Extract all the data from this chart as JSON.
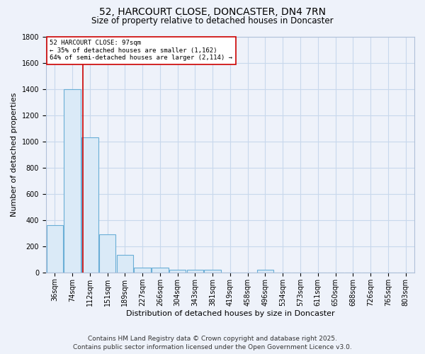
{
  "title": "52, HARCOURT CLOSE, DONCASTER, DN4 7RN",
  "subtitle": "Size of property relative to detached houses in Doncaster",
  "xlabel": "Distribution of detached houses by size in Doncaster",
  "ylabel": "Number of detached properties",
  "bar_labels": [
    "36sqm",
    "74sqm",
    "112sqm",
    "151sqm",
    "189sqm",
    "227sqm",
    "266sqm",
    "304sqm",
    "343sqm",
    "381sqm",
    "419sqm",
    "458sqm",
    "496sqm",
    "534sqm",
    "573sqm",
    "611sqm",
    "650sqm",
    "688sqm",
    "726sqm",
    "765sqm",
    "803sqm"
  ],
  "bar_values": [
    360,
    1400,
    1030,
    290,
    135,
    38,
    38,
    20,
    18,
    18,
    0,
    0,
    18,
    0,
    0,
    0,
    0,
    0,
    0,
    0,
    0
  ],
  "bar_color": "#daeaf7",
  "bar_edge_color": "#6aaed6",
  "grid_color": "#c8d8ec",
  "bg_color": "#eef2fa",
  "red_line_x": 1.6,
  "annotation_text": "52 HARCOURT CLOSE: 97sqm\n← 35% of detached houses are smaller (1,162)\n64% of semi-detached houses are larger (2,114) →",
  "annotation_box_color": "#cc0000",
  "ylim": [
    0,
    1800
  ],
  "yticks": [
    0,
    200,
    400,
    600,
    800,
    1000,
    1200,
    1400,
    1600,
    1800
  ],
  "footer_line1": "Contains HM Land Registry data © Crown copyright and database right 2025.",
  "footer_line2": "Contains public sector information licensed under the Open Government Licence v3.0.",
  "title_fontsize": 10,
  "subtitle_fontsize": 8.5,
  "xlabel_fontsize": 8,
  "ylabel_fontsize": 8,
  "tick_fontsize": 7,
  "annotation_fontsize": 6.5,
  "footer_fontsize": 6.5
}
